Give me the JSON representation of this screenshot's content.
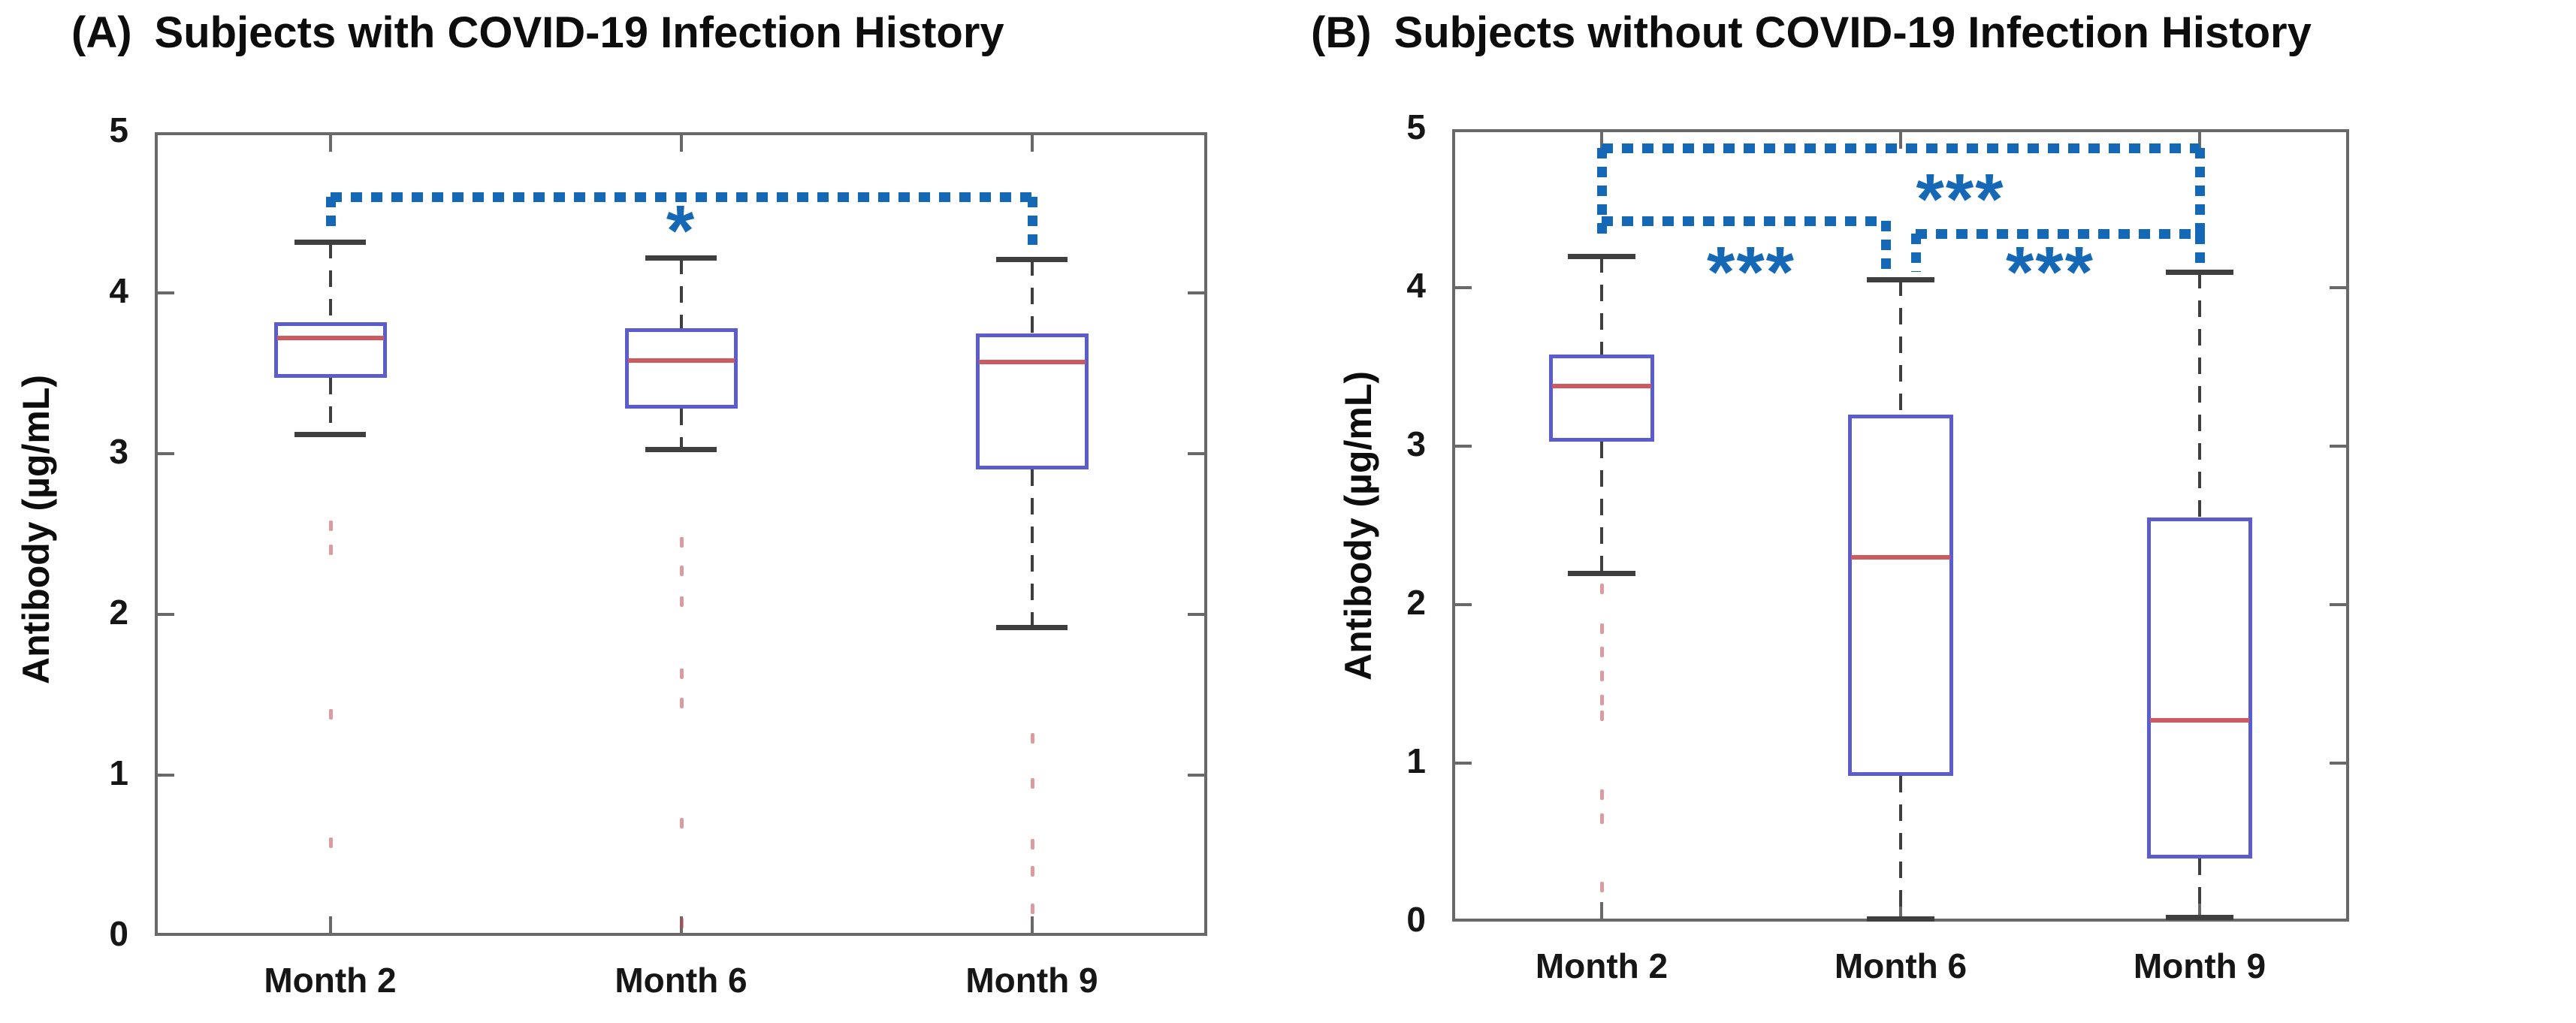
{
  "colors": {
    "background": "#ffffff",
    "box_edge": "#5b5cce",
    "median": "#cc5a5e",
    "whisker": "#3f3f3f",
    "outlier": "#be4850",
    "significance_blue": "#1568b6",
    "axis_gray": "#696969",
    "text": "#121212"
  },
  "chart_data": [
    {
      "type": "boxplot",
      "panel_tag": "(A)",
      "title": "Subjects with COVID-19 Infection History",
      "ylabel": "Antibody (µg/mL)",
      "xlabel": "",
      "ylim": [
        0,
        5
      ],
      "yticks": [
        "0",
        "1",
        "2",
        "3",
        "4",
        "5"
      ],
      "categories": [
        "Month 2",
        "Month 6",
        "Month 9"
      ],
      "grid": false,
      "legend": null,
      "boxes": [
        {
          "category": "Month 2",
          "whisker_low": 3.12,
          "q1": 3.47,
          "median": 3.72,
          "q3": 3.82,
          "whisker_high": 4.32,
          "outliers": [
            2.55,
            2.4,
            1.38,
            0.58
          ]
        },
        {
          "category": "Month 6",
          "whisker_low": 3.03,
          "q1": 3.28,
          "median": 3.58,
          "q3": 3.78,
          "whisker_high": 4.22,
          "outliers": [
            2.45,
            2.27,
            2.08,
            1.63,
            1.45,
            0.7,
            0.08
          ]
        },
        {
          "category": "Month 9",
          "whisker_low": 1.92,
          "q1": 2.9,
          "median": 3.57,
          "q3": 3.75,
          "whisker_high": 4.21,
          "outliers": [
            1.23,
            0.95,
            0.57,
            0.4,
            0.17
          ]
        }
      ],
      "significance": [
        {
          "x1": 1,
          "x2": 3,
          "level": 4.6,
          "drop1": 4.38,
          "drop2": 4.28,
          "label": "*",
          "label_x": 2.0,
          "label_y": 4.45
        }
      ]
    },
    {
      "type": "boxplot",
      "panel_tag": "(B)",
      "title": "Subjects without COVID-19 Infection History",
      "ylabel": "Antibody (µg/mL)",
      "xlabel": "",
      "ylim": [
        0,
        5
      ],
      "yticks": [
        "0",
        "1",
        "2",
        "3",
        "4",
        "5"
      ],
      "categories": [
        "Month 2",
        "Month 6",
        "Month 9"
      ],
      "grid": false,
      "legend": null,
      "boxes": [
        {
          "category": "Month 2",
          "whisker_low": 2.2,
          "q1": 3.03,
          "median": 3.38,
          "q3": 3.58,
          "whisker_high": 4.2,
          "outliers": [
            2.1,
            1.85,
            1.7,
            1.55,
            1.4,
            1.3,
            0.8,
            0.65,
            0.22
          ]
        },
        {
          "category": "Month 6",
          "whisker_low": 0.02,
          "q1": 0.92,
          "median": 2.3,
          "q3": 3.2,
          "whisker_high": 4.05,
          "outliers": []
        },
        {
          "category": "Month 9",
          "whisker_low": 0.03,
          "q1": 0.4,
          "median": 1.27,
          "q3": 2.55,
          "whisker_high": 4.1,
          "outliers": []
        }
      ],
      "significance": [
        {
          "x1": 1,
          "x2": 3,
          "level": 4.88,
          "drop1": 4.3,
          "drop2": 4.34,
          "label": "***",
          "label_x": 2.2,
          "label_y": 4.62
        },
        {
          "x1": 1,
          "x2": 2,
          "level": 4.42,
          "drop2": 4.1,
          "x2_off": -0.05,
          "label": "***",
          "label_x": 1.5,
          "label_y": 4.16
        },
        {
          "x1": 2,
          "x2": 3,
          "level": 4.34,
          "drop1": 4.1,
          "x1_off": 0.05,
          "drop2": 4.12,
          "label": "***",
          "label_x": 2.5,
          "label_y": 4.16
        }
      ]
    }
  ]
}
